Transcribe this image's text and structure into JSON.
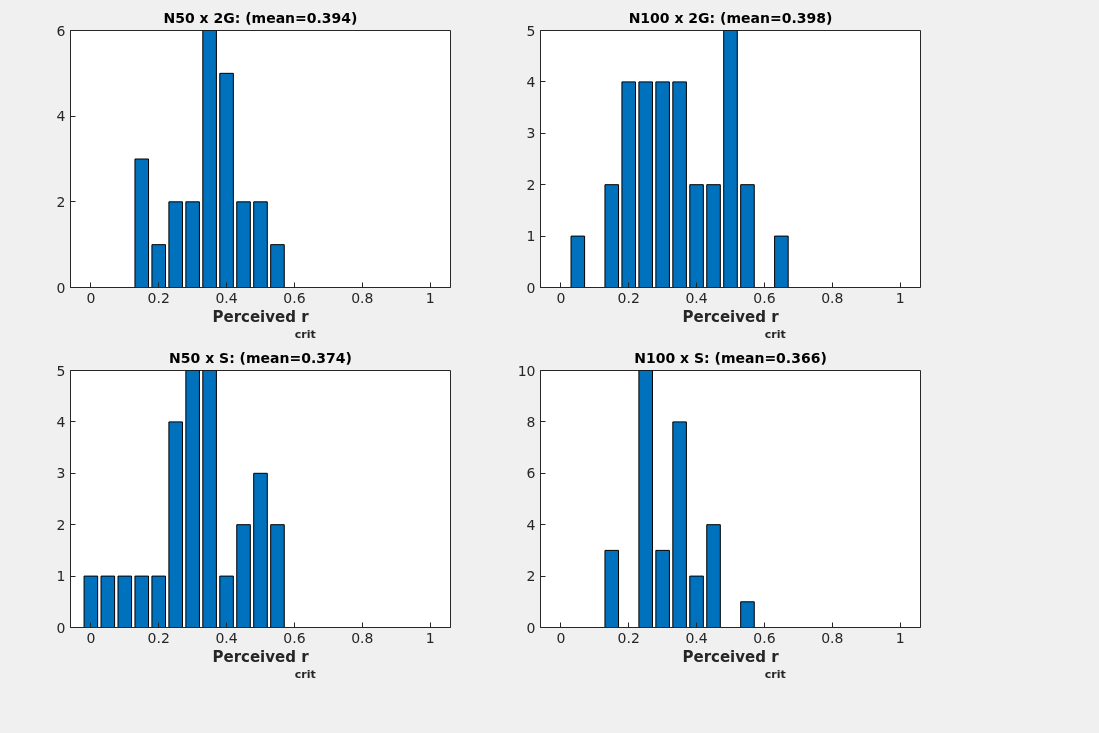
{
  "chart_data": [
    {
      "type": "bar",
      "title": "N50 x 2G: (mean=0.394)",
      "xlabel": "Perceived r$_{crit}$",
      "x": [
        0,
        0.05,
        0.1,
        0.15,
        0.2,
        0.25,
        0.3,
        0.35,
        0.4,
        0.45,
        0.5,
        0.55,
        0.6,
        0.65,
        0.7,
        0.75,
        0.8,
        0.85,
        0.9,
        0.95,
        1
      ],
      "values": [
        0,
        0,
        0,
        3,
        1,
        2,
        2,
        6,
        5,
        2,
        2,
        1,
        0,
        0,
        0,
        0,
        0,
        0,
        0,
        0,
        0
      ],
      "color": "#0072bd",
      "xlim": [
        -0.06,
        1.06
      ],
      "xticks": [
        0,
        0.2,
        0.4,
        0.6,
        0.8,
        1
      ],
      "ylim": [
        0,
        6
      ],
      "yticks": [
        0,
        2,
        4,
        6
      ],
      "grid": false
    },
    {
      "type": "bar",
      "title": "N100 x 2G: (mean=0.398)",
      "xlabel": "Perceived r$_{crit}$",
      "x": [
        0,
        0.05,
        0.1,
        0.15,
        0.2,
        0.25,
        0.3,
        0.35,
        0.4,
        0.45,
        0.5,
        0.55,
        0.6,
        0.65,
        0.7,
        0.75,
        0.8,
        0.85,
        0.9,
        0.95,
        1
      ],
      "values": [
        0,
        1,
        0,
        2,
        4,
        4,
        4,
        4,
        2,
        2,
        5,
        2,
        0,
        1,
        0,
        0,
        0,
        0,
        0,
        0,
        0
      ],
      "color": "#0072bd",
      "xlim": [
        -0.06,
        1.06
      ],
      "xticks": [
        0,
        0.2,
        0.4,
        0.6,
        0.8,
        1
      ],
      "ylim": [
        0,
        5
      ],
      "yticks": [
        0,
        1,
        2,
        3,
        4,
        5
      ],
      "grid": false
    },
    {
      "type": "bar",
      "title": "N50 x S: (mean=0.374)",
      "xlabel": "Perceived r$_{crit}$",
      "x": [
        0,
        0.05,
        0.1,
        0.15,
        0.2,
        0.25,
        0.3,
        0.35,
        0.4,
        0.45,
        0.5,
        0.55,
        0.6,
        0.65,
        0.7,
        0.75,
        0.8,
        0.85,
        0.9,
        0.95,
        1
      ],
      "values": [
        1,
        1,
        1,
        1,
        1,
        4,
        5,
        5,
        1,
        2,
        3,
        2,
        0,
        0,
        0,
        0,
        0,
        0,
        0,
        0,
        0
      ],
      "color": "#0072bd",
      "xlim": [
        -0.06,
        1.06
      ],
      "xticks": [
        0,
        0.2,
        0.4,
        0.6,
        0.8,
        1
      ],
      "ylim": [
        0,
        5
      ],
      "yticks": [
        0,
        1,
        2,
        3,
        4,
        5
      ],
      "grid": false
    },
    {
      "type": "bar",
      "title": "N100 x S: (mean=0.366)",
      "xlabel": "Perceived r$_{crit}$",
      "x": [
        0,
        0.05,
        0.1,
        0.15,
        0.2,
        0.25,
        0.3,
        0.35,
        0.4,
        0.45,
        0.5,
        0.55,
        0.6,
        0.65,
        0.7,
        0.75,
        0.8,
        0.85,
        0.9,
        0.95,
        1
      ],
      "values": [
        0,
        0,
        0,
        3,
        0,
        10,
        3,
        8,
        2,
        4,
        0,
        1,
        0,
        0,
        0,
        0,
        0,
        0,
        0,
        0,
        0
      ],
      "color": "#0072bd",
      "xlim": [
        -0.06,
        1.06
      ],
      "xticks": [
        0,
        0.2,
        0.4,
        0.6,
        0.8,
        1
      ],
      "ylim": [
        0,
        10
      ],
      "yticks": [
        0,
        2,
        4,
        6,
        8,
        10
      ],
      "grid": false
    }
  ]
}
